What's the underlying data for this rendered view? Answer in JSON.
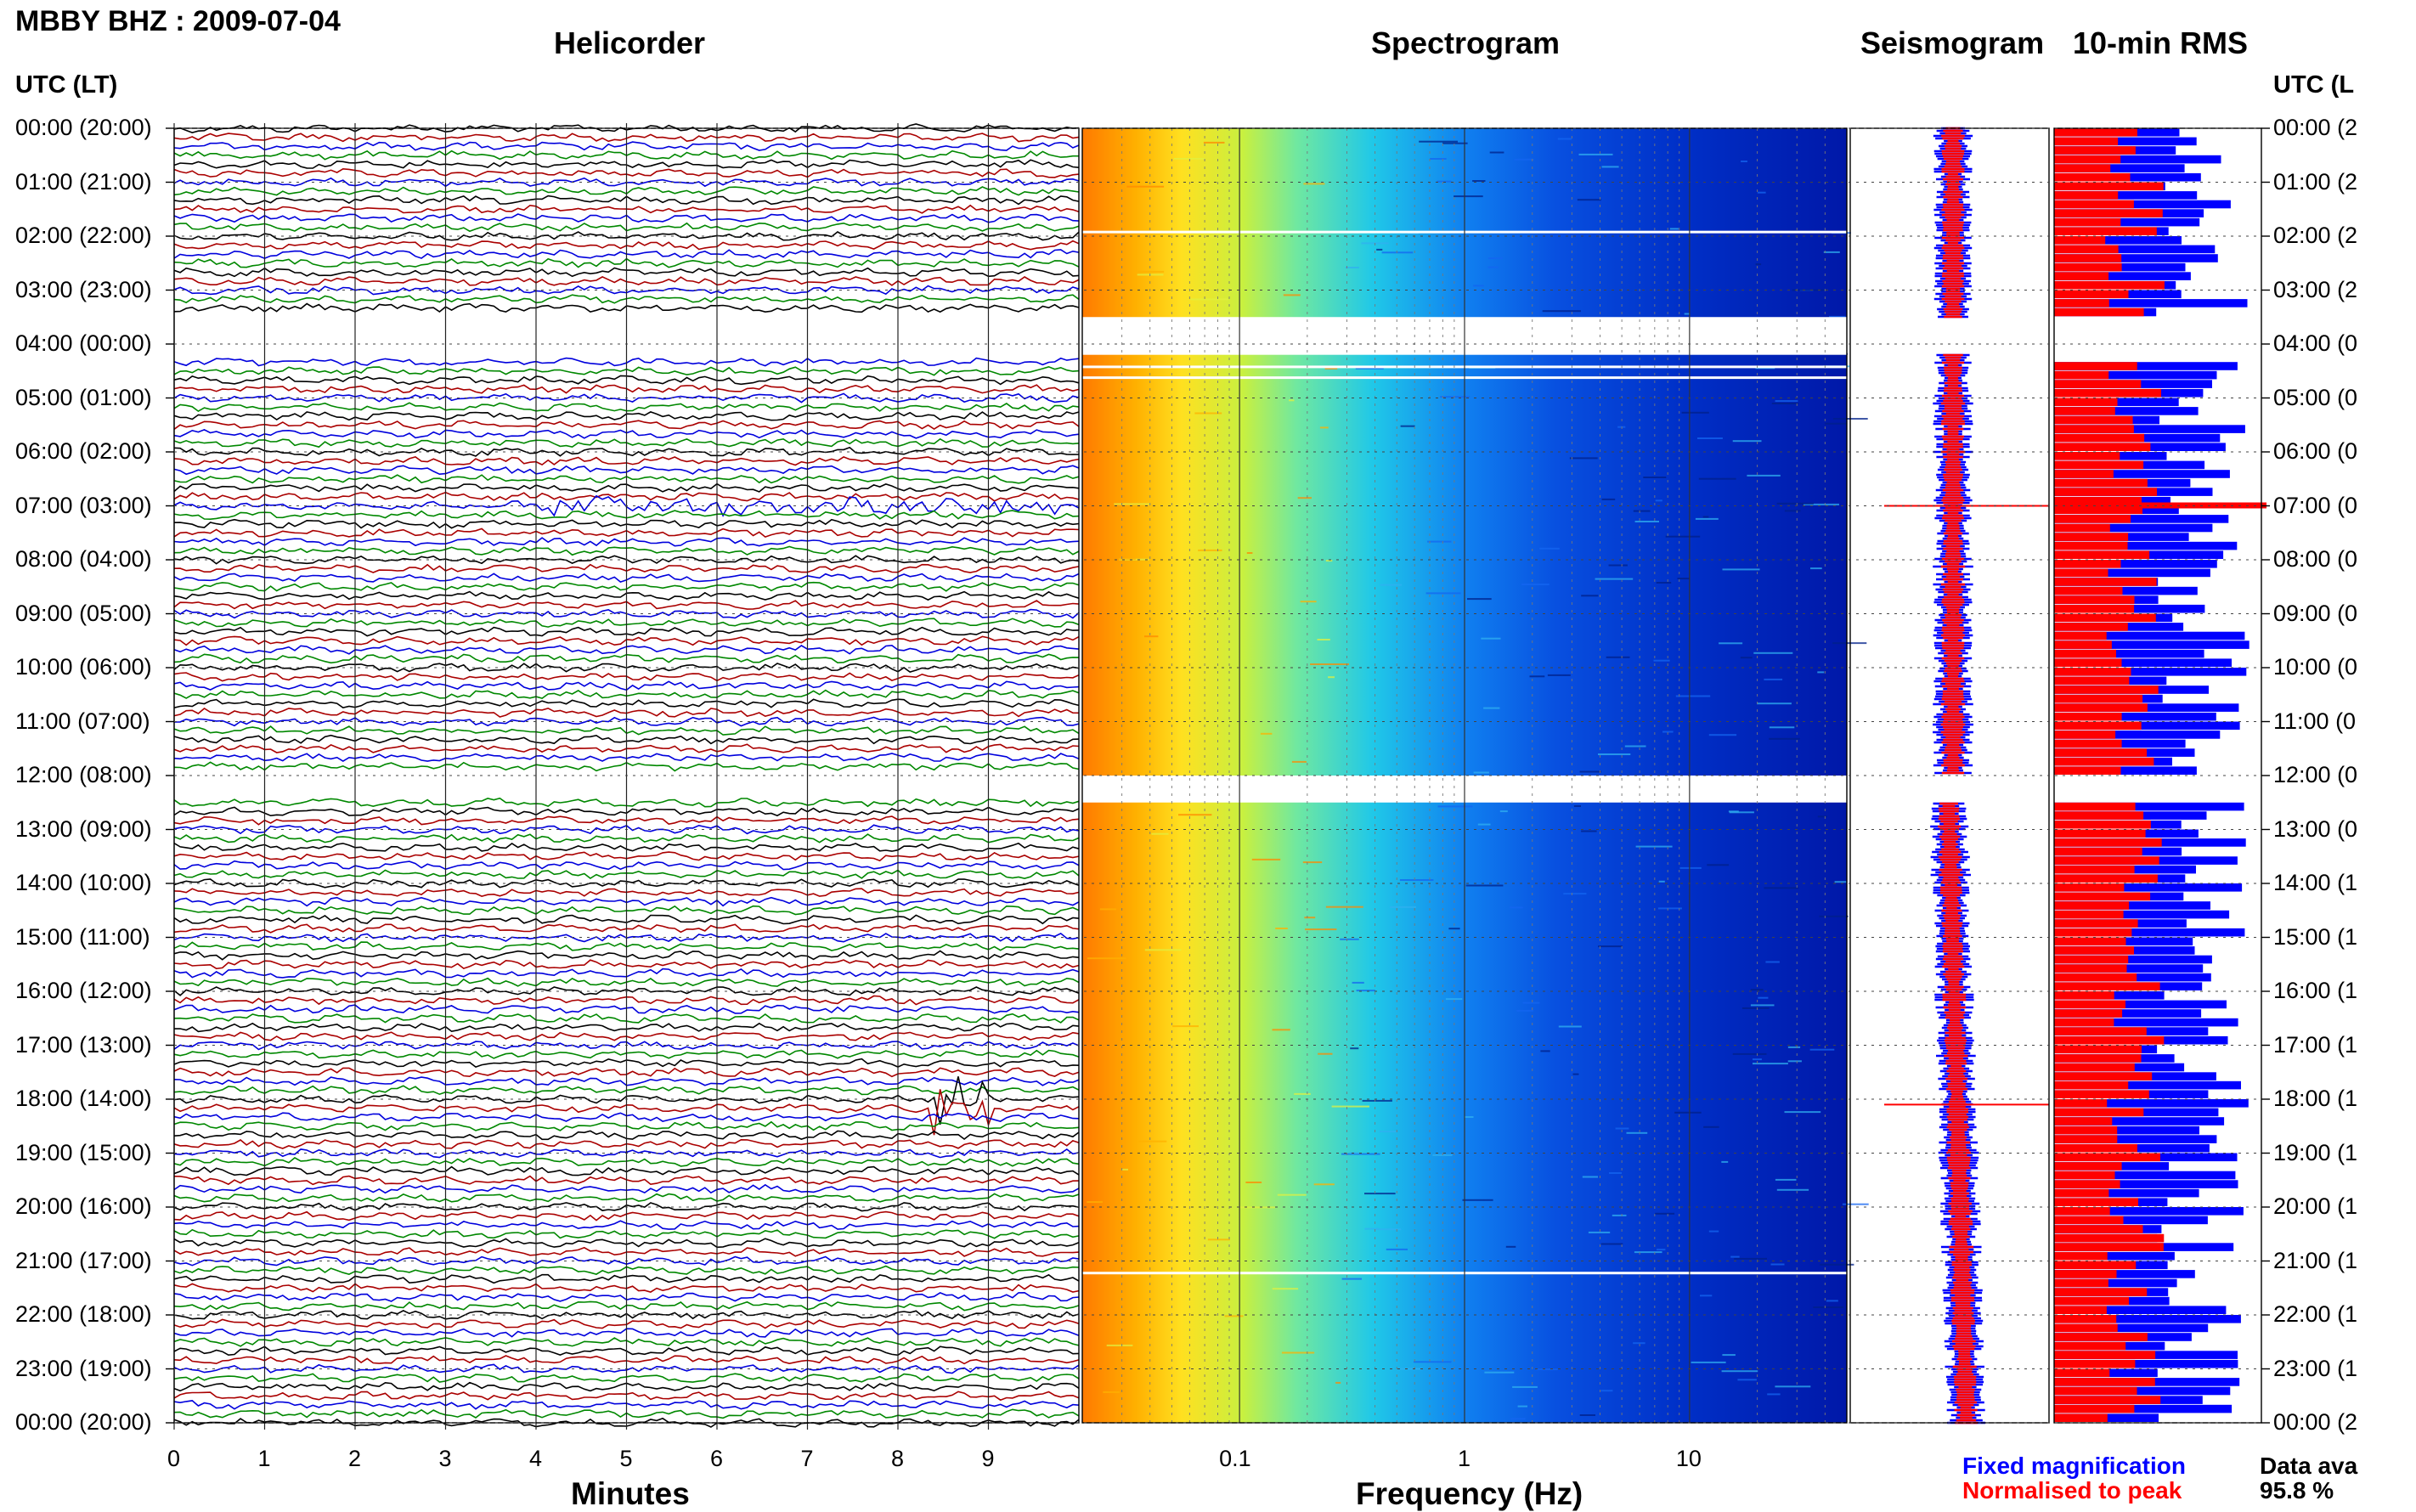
{
  "header": {
    "station": "MBBY BHZ : 2009-07-04"
  },
  "panels": {
    "helicorder": "Helicorder",
    "spectrogram": "Spectrogram",
    "seismogram": "Seismogram",
    "rms": "10-min RMS"
  },
  "axes": {
    "utc_label_left": "UTC (LT)",
    "utc_label_right": "UTC (L",
    "helicorder_xlabel": "Minutes",
    "spectrogram_xlabel": "Frequency (Hz)"
  },
  "legend": {
    "fixed": "Fixed magnification",
    "normalised": "Normalised to peak"
  },
  "availability": {
    "label": "Data ava",
    "value": "95.8 %"
  },
  "colors": {
    "fixed_magnification": "#0000ff",
    "normalised_to_peak": "#ff0000",
    "trace_palette": [
      "#000000",
      "#aa0000",
      "#0000dd",
      "#008800"
    ]
  },
  "chart_data": {
    "type": "heatmap",
    "time_axis": {
      "labels": [
        "00:00 (20:00)",
        "01:00 (21:00)",
        "02:00 (22:00)",
        "03:00 (23:00)",
        "04:00 (00:00)",
        "05:00 (01:00)",
        "06:00 (02:00)",
        "07:00 (03:00)",
        "08:00 (04:00)",
        "09:00 (05:00)",
        "10:00 (06:00)",
        "11:00 (07:00)",
        "12:00 (08:00)",
        "13:00 (09:00)",
        "14:00 (10:00)",
        "15:00 (11:00)",
        "16:00 (12:00)",
        "17:00 (13:00)",
        "18:00 (14:00)",
        "19:00 (15:00)",
        "20:00 (16:00)",
        "21:00 (17:00)",
        "22:00 (18:00)",
        "23:00 (19:00)",
        "00:00 (20:00)"
      ],
      "right_labels": [
        "00:00 (2",
        "01:00 (2",
        "02:00 (2",
        "03:00 (2",
        "04:00 (0",
        "05:00 (0",
        "06:00 (0",
        "07:00 (0",
        "08:00 (0",
        "09:00 (0",
        "10:00 (0",
        "11:00 (0",
        "12:00 (0",
        "13:00 (0",
        "14:00 (1",
        "15:00 (1",
        "16:00 (1",
        "17:00 (1",
        "18:00 (1",
        "19:00 (1",
        "20:00 (1",
        "21:00 (1",
        "22:00 (1",
        "23:00 (1",
        "00:00 (2"
      ]
    },
    "helicorder": {
      "xlabel": "Minutes",
      "x_ticks": [
        0,
        1,
        2,
        3,
        4,
        5,
        6,
        7,
        8,
        9
      ],
      "xlim": [
        0,
        10
      ],
      "traces_per_hour": 6,
      "events": [
        {
          "hour": 7.0,
          "minute_start": 3.7,
          "minute_end": 9.9
        },
        {
          "hour": 18.1,
          "minute_start": 8.4,
          "minute_end": 9.0
        }
      ],
      "gaps_hours": [
        [
          3.5,
          4.2
        ],
        [
          12.0,
          12.4
        ]
      ]
    },
    "spectrogram": {
      "xlabel": "Frequency (Hz)",
      "x_scale": "log",
      "xlim": [
        0.02,
        50
      ],
      "x_ticks": [
        "0.1",
        "1",
        "10"
      ],
      "gaps_hours": [
        [
          3.5,
          4.2
        ],
        [
          12.0,
          12.5
        ]
      ]
    },
    "rms": {
      "series": [
        {
          "name": "Fixed magnification",
          "color": "#0000ff"
        },
        {
          "name": "Normalised to peak",
          "color": "#ff0000"
        }
      ]
    }
  }
}
